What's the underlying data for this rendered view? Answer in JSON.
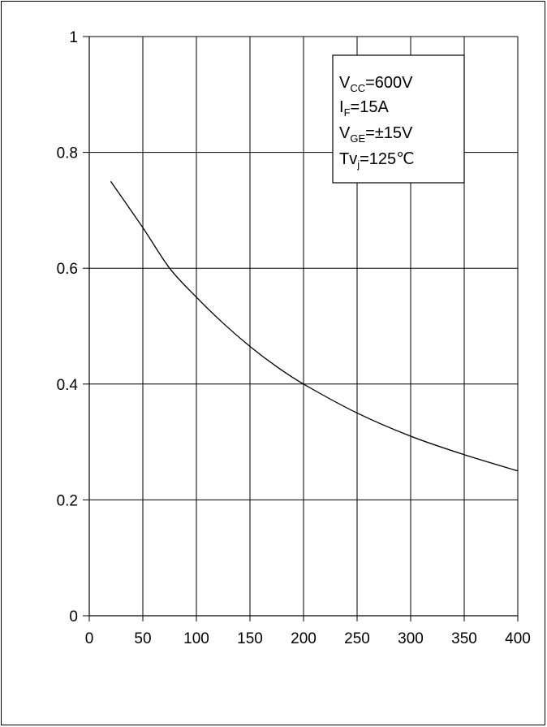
{
  "chart_data": {
    "type": "line",
    "title": "",
    "xlabel": "",
    "ylabel": "",
    "xlim": [
      0,
      400
    ],
    "ylim": [
      0,
      1
    ],
    "grid": true,
    "x_ticks": [
      "0",
      "50",
      "100",
      "150",
      "200",
      "250",
      "300",
      "350",
      "400"
    ],
    "y_ticks": [
      "0",
      "0.2",
      "0.4",
      "0.6",
      "0.8",
      "1"
    ],
    "series": [
      {
        "x": [
          20,
          50,
          75,
          100,
          125,
          150,
          175,
          200,
          250,
          300,
          350,
          400
        ],
        "y": [
          0.75,
          0.67,
          0.6,
          0.55,
          0.505,
          0.465,
          0.43,
          0.4,
          0.35,
          0.31,
          0.278,
          0.25
        ]
      }
    ],
    "annotation": {
      "lines": [
        {
          "main": "V",
          "sub": "CC",
          "rest": "=600V"
        },
        {
          "main": "I",
          "sub": "F",
          "rest": "=15A"
        },
        {
          "main": "V",
          "sub": "GE",
          "rest": "=±15V"
        },
        {
          "main": "Tv",
          "sub": "j",
          "rest": "=125℃"
        }
      ]
    },
    "colors": {
      "line": "#000000",
      "grid": "#000000",
      "background": "#ffffff"
    }
  }
}
